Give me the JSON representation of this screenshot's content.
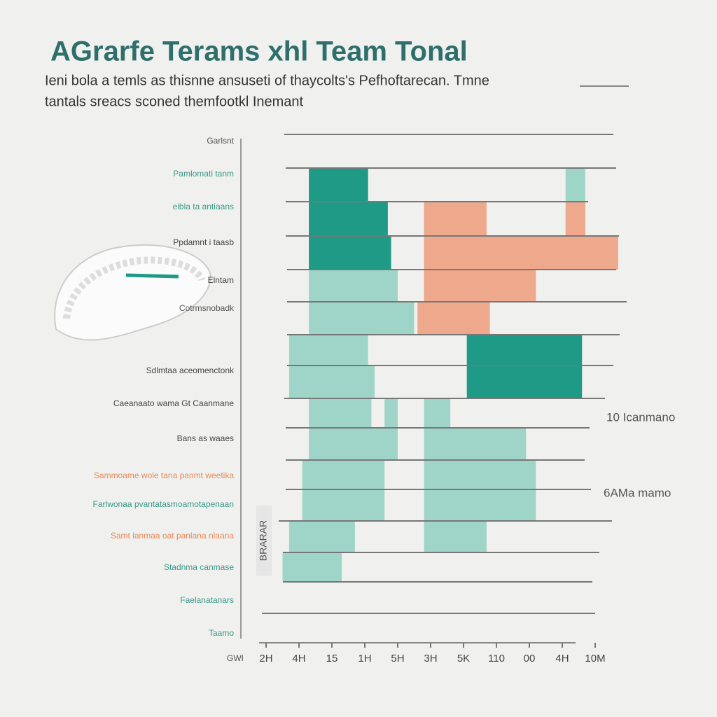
{
  "chart_data": {
    "type": "range_bar",
    "title": "AGrarfe Terams xhl Team Tonal",
    "subtitle": [
      "Ieni bola a temls as thisnne ansuseti of thaycolts's Pefhoftarecan. Tmne",
      "tantals sreacs sconed themfootkl Inemant"
    ],
    "labels": [
      {
        "text": "Garlsnt",
        "color": "#555"
      },
      {
        "text": "Pamlomati tanm",
        "color": "#3a9a8a"
      },
      {
        "text": "eibla ta antiaans",
        "color": "#3a9a8a"
      },
      {
        "text": "Ppdamnt i taasb",
        "color": "#444"
      },
      {
        "text": "Elntam",
        "color": "#444"
      },
      {
        "text": "Cotrmsnobadk",
        "color": "#555"
      },
      {
        "text": "Sdlmtaa aceomenctonk",
        "color": "#444"
      },
      {
        "text": "Caeanaato wama Gt Caanmane",
        "color": "#444"
      },
      {
        "text": "Bans as waaes",
        "color": "#444"
      },
      {
        "text": "Sammoame wole tana panmt weetika",
        "color": "#e58a5a"
      },
      {
        "text": "Farlwonaa pvantatasmoamotapenaan",
        "color": "#3a9a8a"
      },
      {
        "text": "Samt lanmaa oat panlana nlaana",
        "color": "#e58a5a"
      },
      {
        "text": "Stadnma canmase",
        "color": "#3a9a8a"
      },
      {
        "text": "Faelanatanars",
        "color": "#3a9a8a"
      },
      {
        "text": "Taamo",
        "color": "#3a9a8a"
      }
    ],
    "rows": [
      {
        "segments": [
          {
            "start": 1.3,
            "end": 3.1,
            "color": "#1f9a87"
          },
          {
            "start": 9.1,
            "end": 9.7,
            "color": "#9fd5c8"
          }
        ]
      },
      {
        "segments": [
          {
            "start": 1.3,
            "end": 3.7,
            "color": "#1f9a87"
          },
          {
            "start": 4.8,
            "end": 6.7,
            "color": "#eea88c"
          },
          {
            "start": 9.1,
            "end": 9.7,
            "color": "#eea88c"
          }
        ]
      },
      {
        "segments": [
          {
            "start": 1.3,
            "end": 3.8,
            "color": "#1f9a87"
          },
          {
            "start": 4.8,
            "end": 10.7,
            "color": "#eea88c"
          }
        ]
      },
      {
        "segments": [
          {
            "start": 1.3,
            "end": 4.0,
            "color": "#9fd5c8"
          },
          {
            "start": 4.8,
            "end": 8.2,
            "color": "#eea88c"
          }
        ]
      },
      {
        "segments": [
          {
            "start": 1.3,
            "end": 4.5,
            "color": "#9fd5c8"
          },
          {
            "start": 4.6,
            "end": 6.8,
            "color": "#eea88c"
          }
        ]
      },
      {
        "segments": [
          {
            "start": 0.7,
            "end": 3.1,
            "color": "#9fd5c8"
          },
          {
            "start": 6.1,
            "end": 9.6,
            "color": "#1f9a87"
          }
        ]
      },
      {
        "segments": [
          {
            "start": 0.7,
            "end": 3.3,
            "color": "#9fd5c8"
          },
          {
            "start": 6.1,
            "end": 9.6,
            "color": "#1f9a87"
          }
        ]
      },
      {
        "segments": [
          {
            "start": 1.3,
            "end": 3.2,
            "color": "#9fd5c8"
          },
          {
            "start": 3.6,
            "end": 4.0,
            "color": "#9fd5c8"
          },
          {
            "start": 4.8,
            "end": 5.6,
            "color": "#9fd5c8"
          }
        ]
      },
      {
        "segments": [
          {
            "start": 1.3,
            "end": 4.0,
            "color": "#9fd5c8"
          },
          {
            "start": 4.8,
            "end": 7.9,
            "color": "#9fd5c8"
          }
        ]
      },
      {
        "segments": [
          {
            "start": 1.1,
            "end": 3.6,
            "color": "#9fd5c8"
          },
          {
            "start": 4.8,
            "end": 8.2,
            "color": "#9fd5c8"
          }
        ]
      },
      {
        "segments": [
          {
            "start": 1.1,
            "end": 3.6,
            "color": "#9fd5c8"
          },
          {
            "start": 4.8,
            "end": 8.2,
            "color": "#9fd5c8"
          }
        ]
      },
      {
        "segments": [
          {
            "start": 0.7,
            "end": 2.7,
            "color": "#9fd5c8"
          },
          {
            "start": 4.8,
            "end": 6.7,
            "color": "#9fd5c8"
          }
        ]
      },
      {
        "segments": [
          {
            "start": 0.5,
            "end": 2.3,
            "color": "#9fd5c8"
          }
        ]
      }
    ],
    "xlim": [
      0,
      10
    ],
    "xticks": [
      {
        "value": 0,
        "label": "2H"
      },
      {
        "value": 1,
        "label": "4H"
      },
      {
        "value": 2,
        "label": "15"
      },
      {
        "value": 3,
        "label": "1H"
      },
      {
        "value": 4,
        "label": "5H"
      },
      {
        "value": 5,
        "label": "3H"
      },
      {
        "value": 6,
        "label": "5K"
      },
      {
        "value": 7,
        "label": "110"
      },
      {
        "value": 8,
        "label": "00"
      },
      {
        "value": 9,
        "label": "4H"
      },
      {
        "value": 10,
        "label": "10M"
      }
    ],
    "x_axis_label": "GWI",
    "y_axis_label": "BRARAR",
    "annotations": [
      "10 Icanmano",
      "6AMa mamo"
    ],
    "grid": true
  }
}
